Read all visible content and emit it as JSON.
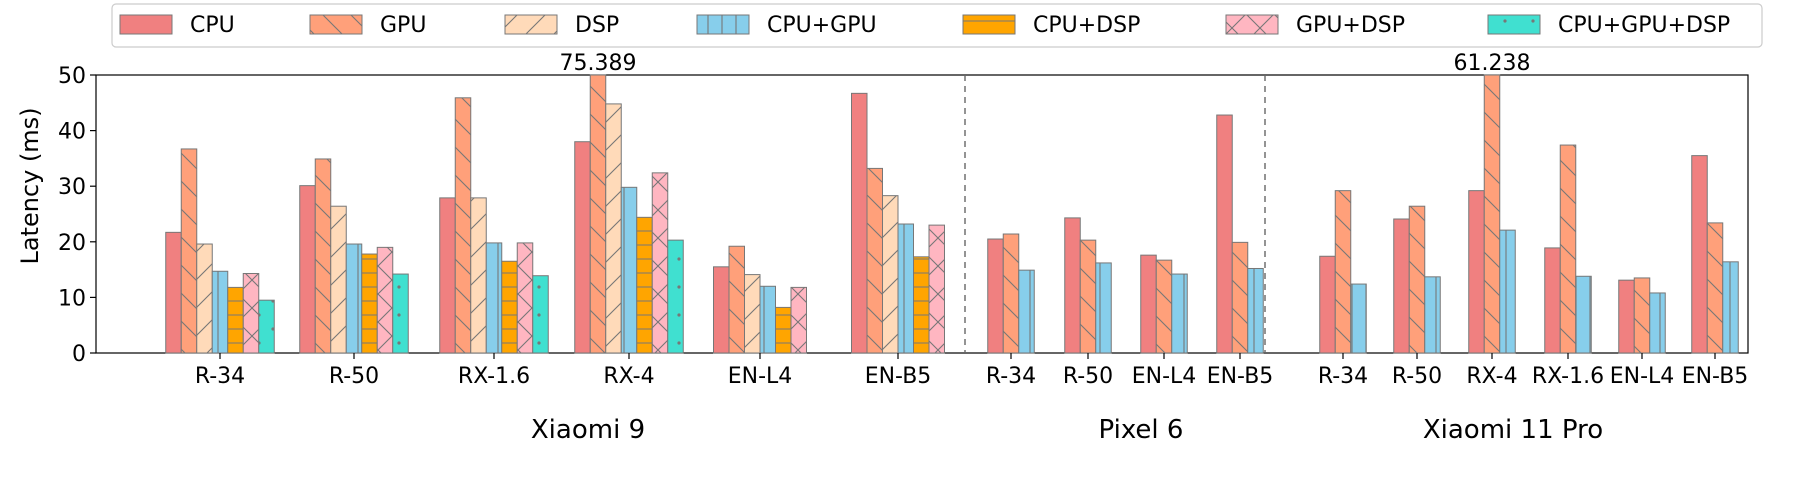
{
  "chart_data": {
    "type": "bar",
    "ylabel": "Latency (ms)",
    "ylim": [
      0,
      50
    ],
    "yticks": [
      "0",
      "10",
      "20",
      "30",
      "40",
      "50"
    ],
    "legend_placement": "top",
    "series": [
      {
        "name": "CPU",
        "color": "#F08080",
        "hatch": "none"
      },
      {
        "name": "GPU",
        "color": "#FFA07A",
        "hatch": "backslash"
      },
      {
        "name": "DSP",
        "color": "#FFDAB9",
        "hatch": "slash"
      },
      {
        "name": "CPU+GPU",
        "color": "#87CEEB",
        "hatch": "vertical"
      },
      {
        "name": "CPU+DSP",
        "color": "#FFA500",
        "hatch": "horizontal"
      },
      {
        "name": "GPU+DSP",
        "color": "#FFB6C1",
        "hatch": "cross"
      },
      {
        "name": "CPU+GPU+DSP",
        "color": "#40E0D0",
        "hatch": "dots"
      }
    ],
    "groups": [
      {
        "device": "Xiaomi 9",
        "models": [
          {
            "label": "R-34",
            "values": [
              21.7,
              36.7,
              19.6,
              14.7,
              11.8,
              14.3,
              9.5
            ]
          },
          {
            "label": "R-50",
            "values": [
              30.1,
              34.9,
              26.4,
              19.6,
              17.8,
              19.0,
              14.2
            ]
          },
          {
            "label": "RX-1.6",
            "values": [
              27.9,
              45.9,
              27.9,
              19.8,
              16.5,
              19.8,
              13.9
            ]
          },
          {
            "label": "RX-4",
            "values": [
              38.0,
              75.389,
              44.8,
              29.8,
              24.4,
              32.4,
              20.3
            ]
          },
          {
            "label": "EN-L4",
            "values": [
              15.5,
              19.2,
              14.1,
              12.0,
              8.2,
              11.8,
              null
            ]
          },
          {
            "label": "EN-B5",
            "values": [
              46.7,
              33.2,
              28.3,
              23.2,
              17.3,
              23.0,
              null
            ]
          }
        ]
      },
      {
        "device": "Pixel 6",
        "models": [
          {
            "label": "R-34",
            "values": [
              20.5,
              21.4,
              null,
              14.9,
              null,
              null,
              null
            ]
          },
          {
            "label": "R-50",
            "values": [
              24.3,
              20.3,
              null,
              16.2,
              null,
              null,
              null
            ]
          },
          {
            "label": "EN-L4",
            "values": [
              17.6,
              16.7,
              null,
              14.2,
              null,
              null,
              null
            ]
          },
          {
            "label": "EN-B5",
            "values": [
              42.8,
              19.9,
              null,
              15.2,
              null,
              null,
              null
            ]
          }
        ]
      },
      {
        "device": "Xiaomi 11 Pro",
        "models": [
          {
            "label": "R-34",
            "values": [
              17.4,
              29.2,
              null,
              12.4,
              null,
              null,
              null
            ]
          },
          {
            "label": "R-50",
            "values": [
              24.1,
              26.4,
              null,
              13.7,
              null,
              null,
              null
            ]
          },
          {
            "label": "RX-4",
            "values": [
              29.2,
              61.238,
              null,
              22.1,
              null,
              null,
              null
            ]
          },
          {
            "label": "RX-1.6",
            "values": [
              18.9,
              37.4,
              null,
              13.8,
              null,
              null,
              null
            ]
          },
          {
            "label": "EN-L4",
            "values": [
              13.1,
              13.5,
              null,
              10.8,
              null,
              null,
              null
            ]
          },
          {
            "label": "EN-B5",
            "values": [
              35.5,
              23.4,
              null,
              16.4,
              null,
              null,
              null
            ]
          }
        ]
      }
    ],
    "annotations": [
      {
        "text": "75.389",
        "device": "Xiaomi 9",
        "model": "RX-4",
        "series": "GPU"
      },
      {
        "text": "61.238",
        "device": "Xiaomi 11 Pro",
        "model": "RX-4",
        "series": "GPU"
      }
    ]
  }
}
